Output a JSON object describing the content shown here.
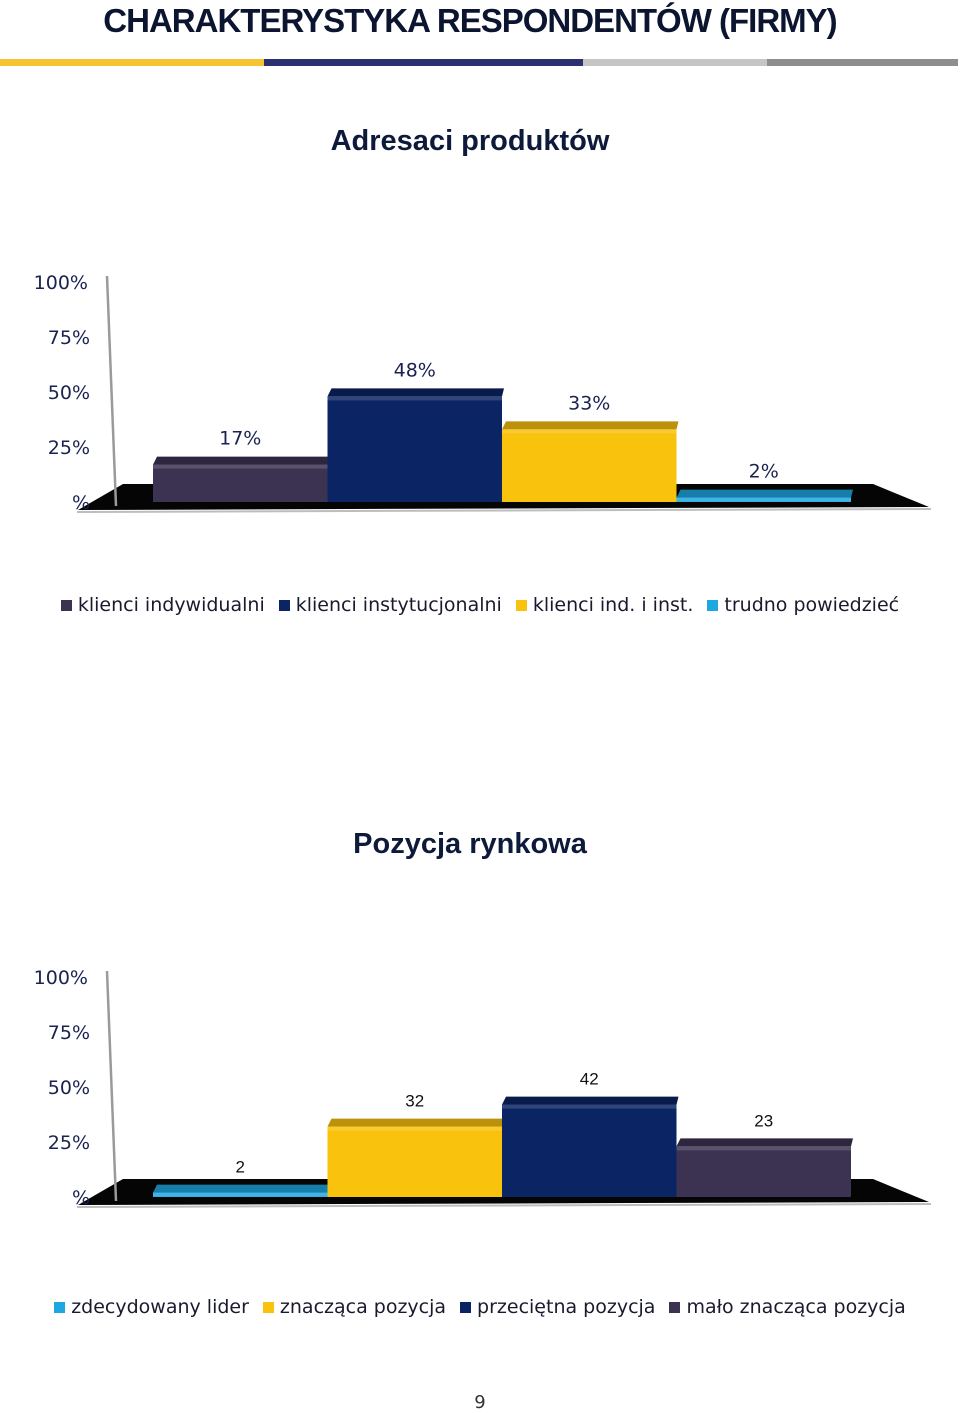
{
  "header": {
    "title": "CHARAKTERYSTYKA RESPONDENTÓW (FIRMY)",
    "stripe_colors": [
      "#f6c431",
      "#2b3070",
      "#c5c5c5",
      "#8e8e8e"
    ]
  },
  "chart_data": [
    {
      "type": "bar",
      "title": "Adresaci produktów",
      "categories": [
        "klienci indywidualni",
        "klienci instytucjonalni",
        "klienci ind. i inst.",
        "trudno powiedzieć"
      ],
      "values": [
        17,
        48,
        33,
        2
      ],
      "data_labels": [
        "17%",
        "48%",
        "33%",
        "2%"
      ],
      "colors": [
        "#3c3352",
        "#0b2463",
        "#f9c20d",
        "#1ea7e1"
      ],
      "ytick_labels": [
        "%",
        "25%",
        "50%",
        "75%",
        "100%"
      ],
      "yticks": [
        0,
        25,
        50,
        75,
        100
      ],
      "ylim": [
        0,
        100
      ],
      "legend": "bottom"
    },
    {
      "type": "bar",
      "title": "Pozycja rynkowa",
      "categories": [
        "zdecydowany lider",
        "znacząca pozycja",
        "przeciętna pozycja",
        "mało znacząca pozycja"
      ],
      "values": [
        2,
        32,
        42,
        23
      ],
      "data_labels": [
        "2",
        "32",
        "42",
        "23"
      ],
      "colors": [
        "#1ea7e1",
        "#f9c20d",
        "#0b2463",
        "#3c3352"
      ],
      "ytick_labels": [
        "%",
        "25%",
        "50%",
        "75%",
        "100%"
      ],
      "yticks": [
        0,
        25,
        50,
        75,
        100
      ],
      "ylim": [
        0,
        100
      ],
      "legend": "bottom"
    }
  ],
  "footer": {
    "page_number": "9"
  }
}
